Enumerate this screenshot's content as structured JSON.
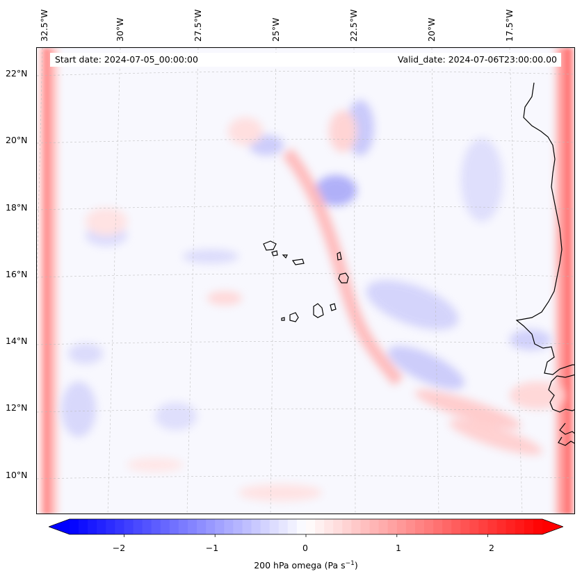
{
  "map": {
    "start_date": "Start date: 2024-07-05_00:00:00",
    "valid_date": "Valid_date: 2024-07-06T23:00:00.00",
    "longitude_labels": [
      "32.5°W",
      "30°W",
      "27.5°W",
      "25°W",
      "22.5°W",
      "20°W",
      "17.5°W"
    ],
    "latitude_labels": [
      "22°N",
      "20°N",
      "18°N",
      "16°N",
      "14°N",
      "12°N",
      "10°N"
    ],
    "extent": {
      "lon_min": -32.8,
      "lon_max": -15.8,
      "lat_min": 8.9,
      "lat_max": 22.8
    },
    "projection": "Lambert conformal",
    "gridlines": true
  },
  "colorbar": {
    "label": "200 hPa omega (Pa s",
    "label_sup": "−1",
    "label_end": ")",
    "ticks": [
      "−2",
      "−1",
      "0",
      "1",
      "2"
    ],
    "tick_values": [
      -2,
      -1,
      0,
      1,
      2
    ],
    "range": [
      -2.6,
      2.6
    ],
    "colormap": "bwr",
    "extend": "both",
    "colors": {
      "min": "#0000ff",
      "mid": "#ffffff",
      "max": "#ff0000"
    }
  }
}
